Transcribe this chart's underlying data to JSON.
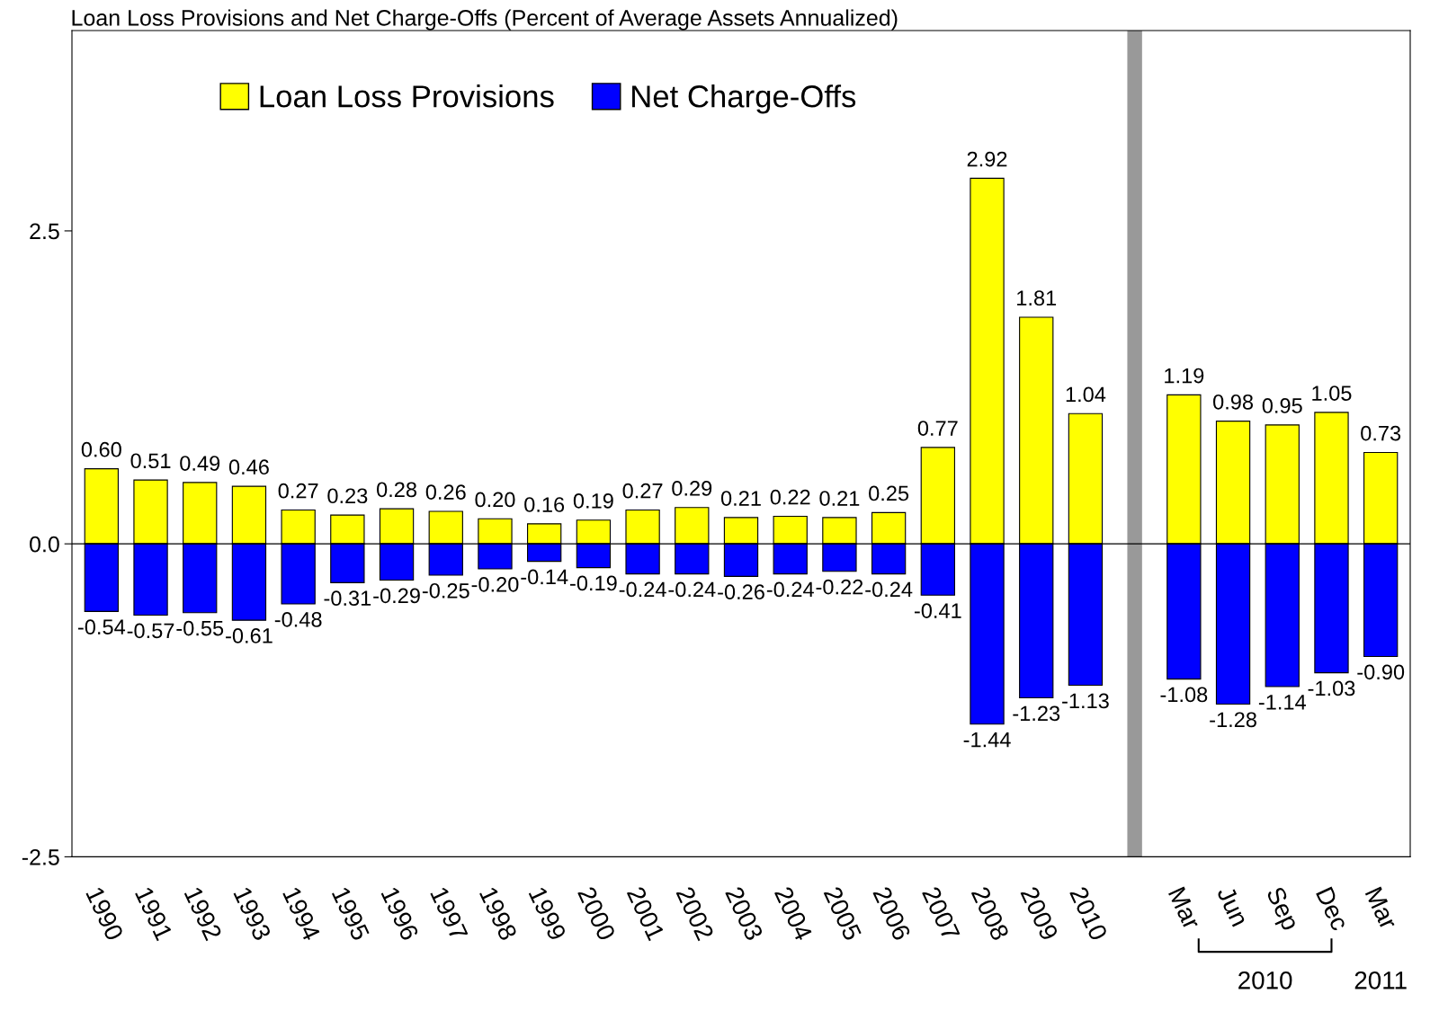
{
  "chart_data": {
    "type": "bar",
    "title": "Loan Loss Provisions and Net Charge-Offs (Percent of Average Assets Annualized)",
    "categories": [
      "1990",
      "1991",
      "1992",
      "1993",
      "1994",
      "1995",
      "1996",
      "1997",
      "1998",
      "1999",
      "2000",
      "2001",
      "2002",
      "2003",
      "2004",
      "2005",
      "2006",
      "2007",
      "2008",
      "2009",
      "2010",
      null,
      "Mar",
      "Jun",
      "Sep",
      "Dec",
      "Mar"
    ],
    "series": [
      {
        "name": "Loan Loss Provisions",
        "color": "#ffff00",
        "values": [
          0.6,
          0.51,
          0.49,
          0.46,
          0.27,
          0.23,
          0.28,
          0.26,
          0.2,
          0.16,
          0.19,
          0.27,
          0.29,
          0.21,
          0.22,
          0.21,
          0.25,
          0.77,
          2.92,
          1.81,
          1.04,
          null,
          1.19,
          0.98,
          0.95,
          1.05,
          0.73
        ],
        "value_labels": [
          "0.60",
          "0.51",
          "0.49",
          "0.46",
          "0.27",
          "0.23",
          "0.28",
          "0.26",
          "0.20",
          "0.16",
          "0.19",
          "0.27",
          "0.29",
          "0.21",
          "0.22",
          "0.21",
          "0.25",
          "0.77",
          "2.92",
          "1.81",
          "1.04",
          null,
          "1.19",
          "0.98",
          "0.95",
          "1.05",
          "0.73"
        ]
      },
      {
        "name": "Net Charge-Offs",
        "color": "#0000ff",
        "values": [
          -0.54,
          -0.57,
          -0.55,
          -0.61,
          -0.48,
          -0.31,
          -0.29,
          -0.25,
          -0.2,
          -0.14,
          -0.19,
          -0.24,
          -0.24,
          -0.26,
          -0.24,
          -0.22,
          -0.24,
          -0.41,
          -1.44,
          -1.23,
          -1.13,
          null,
          -1.08,
          -1.28,
          -1.14,
          -1.03,
          -0.9
        ],
        "value_labels": [
          "-0.54",
          "-0.57",
          "-0.55",
          "-0.61",
          "-0.48",
          "-0.31",
          "-0.29",
          "-0.25",
          "-0.20",
          "-0.14",
          "-0.19",
          "-0.24",
          "-0.24",
          "-0.26",
          "-0.24",
          "-0.22",
          "-0.24",
          "-0.41",
          "-1.44",
          "-1.23",
          "-1.13",
          null,
          "-1.08",
          "-1.28",
          "-1.14",
          "-1.03",
          "-0.90"
        ]
      }
    ],
    "ylim": [
      -2.5,
      4.1
    ],
    "yticks": [
      {
        "value": -2.5,
        "label": "-2.5"
      },
      {
        "value": 0,
        "label": "0.0"
      },
      {
        "value": 2.5,
        "label": "2.5"
      }
    ],
    "stacked": true,
    "legend": "top left",
    "annotations": [
      "2010",
      "2011"
    ]
  }
}
